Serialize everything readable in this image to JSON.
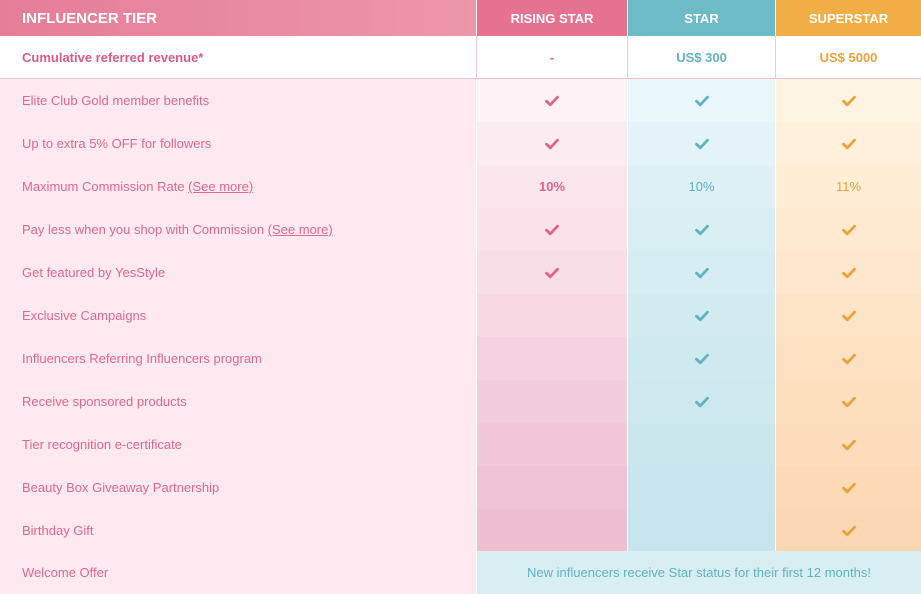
{
  "header": {
    "tier_label": "INFLUENCER TIER",
    "tiers": [
      "RISING STAR",
      "STAR",
      "SUPERSTAR"
    ]
  },
  "revenue": {
    "label": "Cumulative referred revenue*",
    "values": [
      "-",
      "US$ 300",
      "US$ 5000"
    ]
  },
  "colors": {
    "rising_star": "#e57291",
    "star": "#6cbbc6",
    "superstar": "#f1ae46",
    "label_text": "#df6890"
  },
  "features": [
    {
      "label": "Elite Club Gold member benefits",
      "link": "",
      "values": [
        "check",
        "check",
        "check"
      ]
    },
    {
      "label": "Up to extra 5% OFF for followers",
      "link": "",
      "values": [
        "check",
        "check",
        "check"
      ]
    },
    {
      "label": "Maximum Commission Rate ",
      "link": "(See more)",
      "values": [
        "10%",
        "10%",
        "11%"
      ]
    },
    {
      "label": "Pay less when you shop with Commission ",
      "link": "(See more)",
      "values": [
        "check",
        "check",
        "check"
      ]
    },
    {
      "label": "Get featured by YesStyle",
      "link": "",
      "values": [
        "check",
        "check",
        "check"
      ]
    },
    {
      "label": "Exclusive Campaigns",
      "link": "",
      "values": [
        "",
        "check",
        "check"
      ]
    },
    {
      "label": "Influencers Referring Influencers program",
      "link": "",
      "values": [
        "",
        "check",
        "check"
      ]
    },
    {
      "label": "Receive sponsored products",
      "link": "",
      "values": [
        "",
        "check",
        "check"
      ]
    },
    {
      "label": "Tier recognition e-certificate",
      "link": "",
      "values": [
        "",
        "",
        "check"
      ]
    },
    {
      "label": "Beauty Box Giveaway Partnership",
      "link": "",
      "values": [
        "",
        "",
        "check"
      ]
    },
    {
      "label": "Birthday Gift",
      "link": "",
      "values": [
        "",
        "",
        "check"
      ]
    }
  ],
  "welcome": {
    "label": "Welcome Offer",
    "text": "New influencers receive Star status for their first 12 months!"
  }
}
